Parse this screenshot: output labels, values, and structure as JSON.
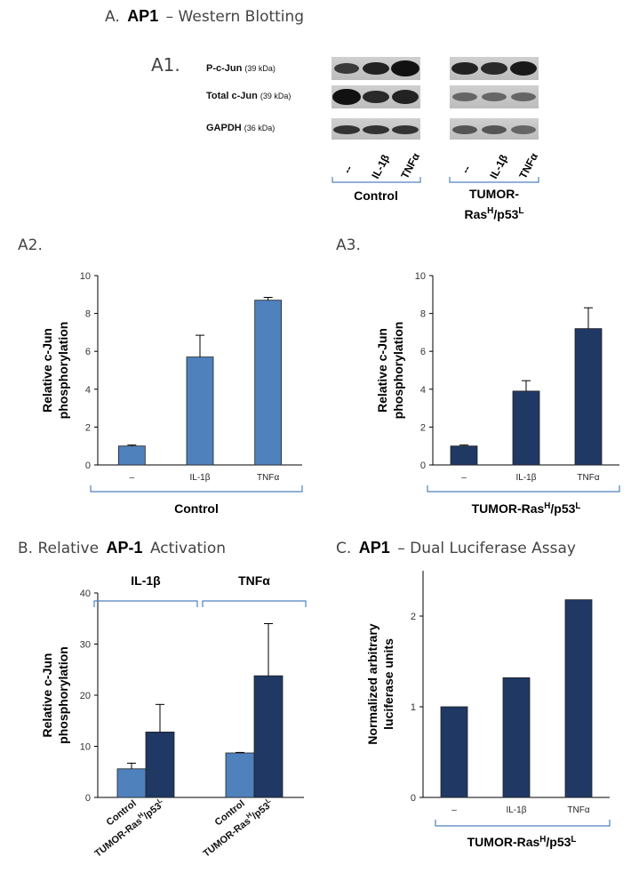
{
  "panel_A": {
    "title_prefix": "A.",
    "title_bold": "AP1",
    "title_rest": "– Western Blotting",
    "sub_label": "A1.",
    "blot_rows": [
      {
        "name": "P-c-Jun",
        "kda": "(39 kDa)"
      },
      {
        "name": "Total c-Jun",
        "kda": "(39 kDa)"
      },
      {
        "name": "GAPDH",
        "kda": "(36 kDa)"
      }
    ],
    "lanes": [
      "--",
      "IL-1β",
      "TNFα"
    ],
    "group_control": "Control",
    "group_tumor_line1": "TUMOR-",
    "group_tumor_base": "Ras",
    "group_tumor_sup1": "H",
    "group_tumor_mid": "/p53",
    "group_tumor_sup2": "L"
  },
  "panel_A2": {
    "label": "A2."
  },
  "panel_A3": {
    "label": "A3."
  },
  "panel_B": {
    "title_prefix": "B. Relative",
    "title_bold": "AP-1",
    "title_rest": "Activation"
  },
  "panel_C": {
    "title_prefix": "C.",
    "title_bold": "AP1",
    "title_rest": "– Dual Luciferase Assay"
  },
  "colors": {
    "light_blue": "#4f81bd",
    "dark_navy": "#1f3864",
    "bracket": "#4f81bd"
  },
  "chart_data": [
    {
      "id": "A2",
      "type": "bar",
      "categories": [
        "–",
        "IL-1β",
        "TNFα"
      ],
      "values": [
        1.0,
        5.7,
        8.7
      ],
      "errors": [
        0.05,
        1.15,
        0.15
      ],
      "ylabel_line1": "Relative c-Jun",
      "ylabel_line2": "phosphorylation",
      "ylim": [
        0,
        10
      ],
      "yticks": [
        "0",
        "2",
        "4",
        "6",
        "8",
        "10"
      ],
      "group_label": "Control",
      "color": "#4f81bd"
    },
    {
      "id": "A3",
      "type": "bar",
      "categories": [
        "–",
        "IL-1β",
        "TNFα"
      ],
      "values": [
        1.0,
        3.9,
        7.2
      ],
      "errors": [
        0.05,
        0.55,
        1.1
      ],
      "ylabel_line1": "Relative c-Jun",
      "ylabel_line2": "phosphorylation",
      "ylim": [
        0,
        10
      ],
      "yticks": [
        "0",
        "2",
        "4",
        "6",
        "8",
        "10"
      ],
      "group_label_base": "TUMOR-Ras",
      "group_label_sup1": "H",
      "group_label_mid": "/p53",
      "group_label_sup2": "L",
      "color": "#1f3864"
    },
    {
      "id": "B",
      "type": "bar",
      "groups": [
        "IL-1β",
        "TNFα"
      ],
      "series": [
        {
          "name": "Control",
          "values": [
            5.6,
            8.7
          ],
          "errors": [
            1.1,
            0.1
          ],
          "color": "#4f81bd"
        },
        {
          "name": "TUMOR-Ras^H/p53^L",
          "values": [
            12.8,
            23.8
          ],
          "errors": [
            5.4,
            10.2
          ],
          "color": "#1f3864"
        }
      ],
      "xlabels": {
        "control": "Control",
        "tumor_base": "TUMOR-Ras",
        "tumor_sup1": "H",
        "tumor_mid": "/p53",
        "tumor_sup2": "L"
      },
      "ylabel_line1": "Relative c-Jun",
      "ylabel_line2": "phosphorylation",
      "ylim": [
        0,
        40
      ],
      "yticks": [
        "0",
        "10",
        "20",
        "30",
        "40"
      ]
    },
    {
      "id": "C",
      "type": "bar",
      "categories": [
        "–",
        "IL-1β",
        "TNFα"
      ],
      "values": [
        1.0,
        1.32,
        2.18
      ],
      "ylabel_line1": "Normalized arbitrary",
      "ylabel_line2": "luciferase units",
      "ylim": [
        0,
        2.5
      ],
      "yticks": [
        "0",
        "1",
        "2"
      ],
      "ytick_values": [
        0,
        1,
        2
      ],
      "group_label_base": "TUMOR-Ras",
      "group_label_sup1": "H",
      "group_label_mid": "/p53",
      "group_label_sup2": "L",
      "color": "#1f3864"
    }
  ]
}
